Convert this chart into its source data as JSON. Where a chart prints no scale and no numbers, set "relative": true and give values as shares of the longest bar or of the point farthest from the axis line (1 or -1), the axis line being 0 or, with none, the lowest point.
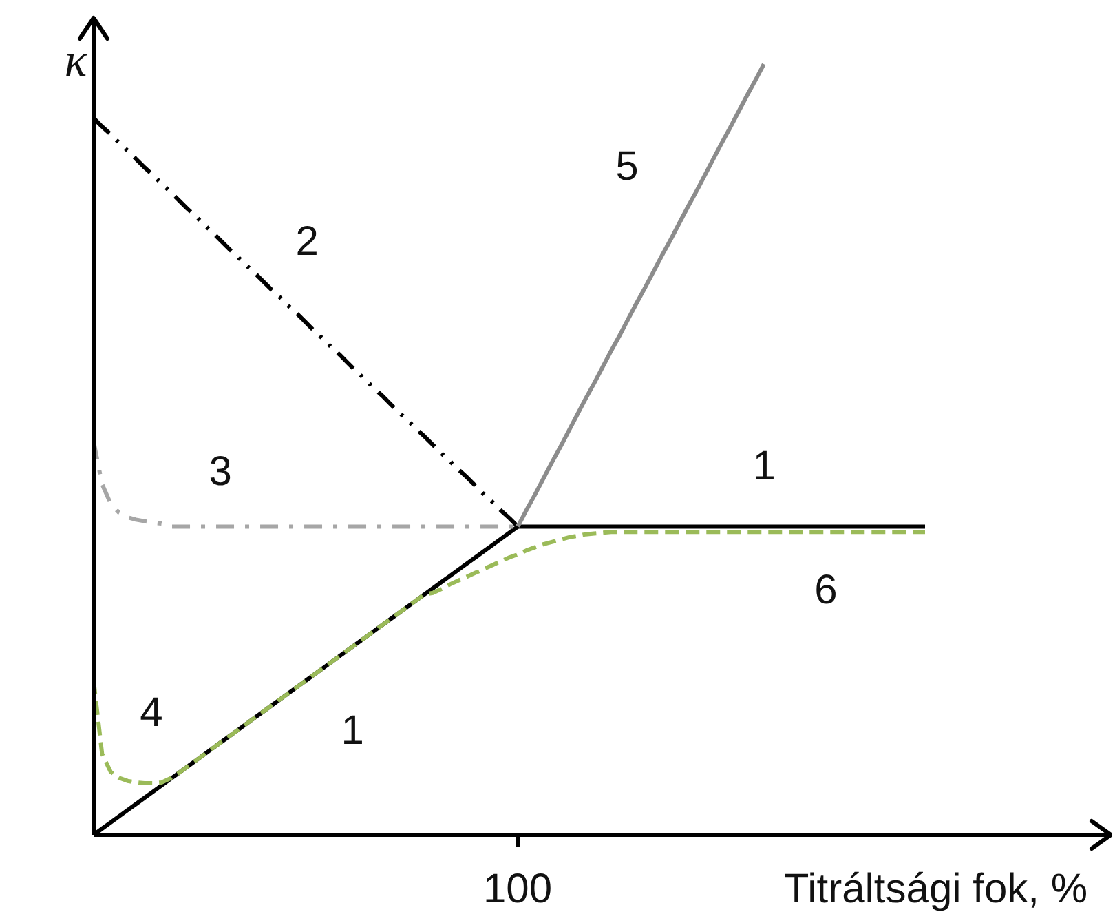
{
  "chart_data": {
    "type": "line",
    "relative": true,
    "xlabel": "Titráltsági fok, %",
    "ylabel": "κ",
    "annotations": [
      "100",
      "4",
      "6"
    ],
    "categories": [
      null,
      null,
      null,
      null,
      null,
      null,
      null,
      null,
      null,
      null,
      null,
      null,
      null,
      null,
      null,
      null,
      null,
      null,
      null,
      null,
      null,
      null,
      null,
      null,
      null,
      null,
      null,
      null,
      null,
      null,
      null,
      null,
      null,
      null,
      null,
      null,
      null,
      null,
      null,
      null,
      null,
      null,
      null,
      null,
      null,
      null,
      null,
      null,
      null,
      null,
      null,
      null,
      null,
      null,
      null,
      null,
      null,
      null,
      null,
      null,
      null,
      null,
      null,
      null,
      null,
      null,
      null,
      null,
      null,
      null,
      null,
      null,
      null,
      null,
      null,
      null,
      null,
      null,
      null,
      null,
      null,
      null,
      null,
      null,
      null,
      null,
      null,
      null,
      null,
      null,
      null,
      null,
      null,
      null,
      null,
      null,
      null,
      null,
      null
    ],
    "series": [
      {
        "name": "1",
        "color": "#000000",
        "line_style": "solid",
        "values": [
          0,
          0.008,
          0.016,
          0.024,
          0.032,
          0.04,
          0.048,
          0.056,
          0.064,
          0.072,
          0.08,
          0.088,
          0.096,
          0.104,
          0.112,
          0.12,
          0.128,
          0.136,
          0.144,
          0.152,
          0.16,
          0.168,
          0.176,
          0.184,
          0.192,
          0.2,
          0.208,
          0.216,
          0.224,
          0.232,
          0.24,
          0.248,
          0.256,
          0.264,
          0.272,
          0.28,
          0.288,
          0.296,
          0.304,
          0.312,
          0.32,
          0.328,
          0.336,
          0.344,
          0.352,
          0.36,
          0.368,
          0.376,
          0.384,
          0.392,
          0.4,
          null,
          null,
          null,
          null,
          null,
          null,
          null,
          null,
          null,
          null,
          null,
          null,
          null,
          null,
          null,
          null,
          null,
          null,
          null,
          null,
          null,
          null,
          null,
          null,
          null,
          null,
          null,
          null,
          null,
          null,
          null,
          null,
          null,
          null,
          null,
          null,
          null,
          null,
          null,
          null,
          null,
          null,
          null,
          null,
          null,
          null,
          null,
          null
        ]
      },
      {
        "name": "1",
        "color": "#000000",
        "line_style": "solid",
        "values": [
          null,
          null,
          null,
          null,
          null,
          null,
          null,
          null,
          null,
          null,
          null,
          null,
          null,
          null,
          null,
          null,
          null,
          null,
          null,
          null,
          null,
          null,
          null,
          null,
          null,
          null,
          null,
          null,
          null,
          null,
          null,
          null,
          null,
          null,
          null,
          null,
          null,
          null,
          null,
          null,
          null,
          null,
          null,
          null,
          null,
          null,
          null,
          null,
          null,
          null,
          0.4,
          0.4,
          0.4,
          0.4,
          0.4,
          0.4,
          0.4,
          0.4,
          0.4,
          0.4,
          0.4,
          0.4,
          0.4,
          0.4,
          0.4,
          0.4,
          0.4,
          0.4,
          0.4,
          0.4,
          0.4,
          0.4,
          0.4,
          0.4,
          0.4,
          0.4,
          0.4,
          0.4,
          0.4,
          0.4,
          0.4,
          0.4,
          0.4,
          0.4,
          0.4,
          0.4,
          0.4,
          0.4,
          0.4,
          0.4,
          0.4,
          0.4,
          0.4,
          0.4,
          0.4,
          0.4,
          0.4,
          0.4,
          0.4
        ]
      },
      {
        "name": "2",
        "color": "#000000",
        "line_style": "dashdotdot",
        "values": [
          0.93,
          0.919,
          0.909,
          0.898,
          0.888,
          0.877,
          0.866,
          0.856,
          0.845,
          0.835,
          0.824,
          0.813,
          0.803,
          0.792,
          0.782,
          0.771,
          0.76,
          0.75,
          0.739,
          0.729,
          0.718,
          0.707,
          0.697,
          0.686,
          0.676,
          0.665,
          0.654,
          0.644,
          0.633,
          0.623,
          0.612,
          0.601,
          0.591,
          0.58,
          0.57,
          0.559,
          0.548,
          0.538,
          0.527,
          0.517,
          0.506,
          0.495,
          0.485,
          0.474,
          0.464,
          0.453,
          0.442,
          0.432,
          0.421,
          0.411,
          0.4,
          null,
          null,
          null,
          null,
          null,
          null,
          null,
          null,
          null,
          null,
          null,
          null,
          null,
          null,
          null,
          null,
          null,
          null,
          null,
          null,
          null,
          null,
          null,
          null,
          null,
          null,
          null,
          null,
          null,
          null,
          null,
          null,
          null,
          null,
          null,
          null,
          null,
          null,
          null,
          null,
          null,
          null,
          null,
          null,
          null,
          null,
          null,
          null
        ]
      },
      {
        "name": "3",
        "color": "#a6a6a6",
        "line_style": "dashdot",
        "values": [
          0.51,
          0.455,
          0.43,
          0.418,
          0.412,
          0.409,
          0.407,
          0.405,
          0.404,
          0.4,
          0.4,
          0.4,
          0.4,
          0.4,
          0.4,
          0.4,
          0.4,
          0.4,
          0.4,
          0.4,
          0.4,
          0.4,
          0.4,
          0.4,
          0.4,
          0.4,
          0.4,
          0.4,
          0.4,
          0.4,
          0.4,
          0.4,
          0.4,
          0.4,
          0.4,
          0.4,
          0.4,
          0.4,
          0.4,
          0.4,
          0.4,
          0.4,
          0.4,
          0.4,
          0.4,
          0.4,
          0.4,
          0.4,
          0.4,
          0.4,
          0.4,
          null,
          null,
          null,
          null,
          null,
          null,
          null,
          null,
          null,
          null,
          null,
          null,
          null,
          null,
          null,
          null,
          null,
          null,
          null,
          null,
          null,
          null,
          null,
          null,
          null,
          null,
          null,
          null,
          null,
          null,
          null,
          null,
          null,
          null,
          null,
          null,
          null,
          null,
          null,
          null,
          null,
          null,
          null,
          null,
          null,
          null,
          null,
          null
        ]
      },
      {
        "name": "5",
        "color": "#8c8c8c",
        "line_style": "solid",
        "values": [
          null,
          null,
          null,
          null,
          null,
          null,
          null,
          null,
          null,
          null,
          null,
          null,
          null,
          null,
          null,
          null,
          null,
          null,
          null,
          null,
          null,
          null,
          null,
          null,
          null,
          null,
          null,
          null,
          null,
          null,
          null,
          null,
          null,
          null,
          null,
          null,
          null,
          null,
          null,
          null,
          null,
          null,
          null,
          null,
          null,
          null,
          null,
          null,
          null,
          null,
          0.4,
          0.421,
          0.441,
          0.462,
          0.483,
          0.503,
          0.524,
          0.545,
          0.566,
          0.586,
          0.607,
          0.628,
          0.648,
          0.669,
          0.69,
          0.71,
          0.731,
          0.752,
          0.772,
          0.793,
          0.814,
          0.834,
          0.855,
          0.876,
          0.897,
          0.917,
          0.938,
          0.959,
          0.979,
          1,
          null,
          null,
          null,
          null,
          null,
          null,
          null,
          null,
          null,
          null,
          null,
          null,
          null,
          null,
          null,
          null,
          null,
          null,
          null
        ]
      },
      {
        "color": "#9bbb59",
        "line_style": "dashed",
        "values": [
          0.2,
          0.105,
          0.082,
          0.074,
          0.07,
          0.068,
          0.067,
          0.067,
          0.068,
          0.073,
          0.08,
          0.088,
          0.096,
          0.104,
          0.112,
          0.12,
          0.128,
          0.136,
          0.144,
          0.152,
          0.16,
          0.168,
          0.176,
          0.184,
          0.192,
          0.2,
          0.208,
          0.216,
          0.224,
          0.232,
          0.24,
          0.248,
          0.256,
          0.264,
          0.272,
          0.28,
          0.288,
          0.296,
          0.304,
          0.312,
          0.314,
          0.319,
          0.325,
          0.33,
          0.335,
          0.34,
          0.345,
          0.35,
          0.355,
          0.36,
          0.364,
          0.369,
          0.373,
          0.377,
          0.38,
          0.383,
          0.386,
          0.388,
          0.39,
          0.391,
          0.392,
          0.393,
          0.393,
          0.393,
          0.393,
          0.393,
          0.393,
          0.393,
          0.393,
          0.393,
          0.393,
          0.393,
          0.393,
          0.393,
          0.393,
          0.393,
          0.393,
          0.393,
          0.393,
          0.393,
          0.393,
          0.393,
          0.393,
          0.393,
          0.393,
          0.393,
          0.393,
          0.393,
          0.393,
          0.393,
          0.393,
          0.393,
          0.393,
          0.393,
          0.393,
          0.393,
          0.393,
          0.393,
          0.393
        ]
      }
    ]
  }
}
